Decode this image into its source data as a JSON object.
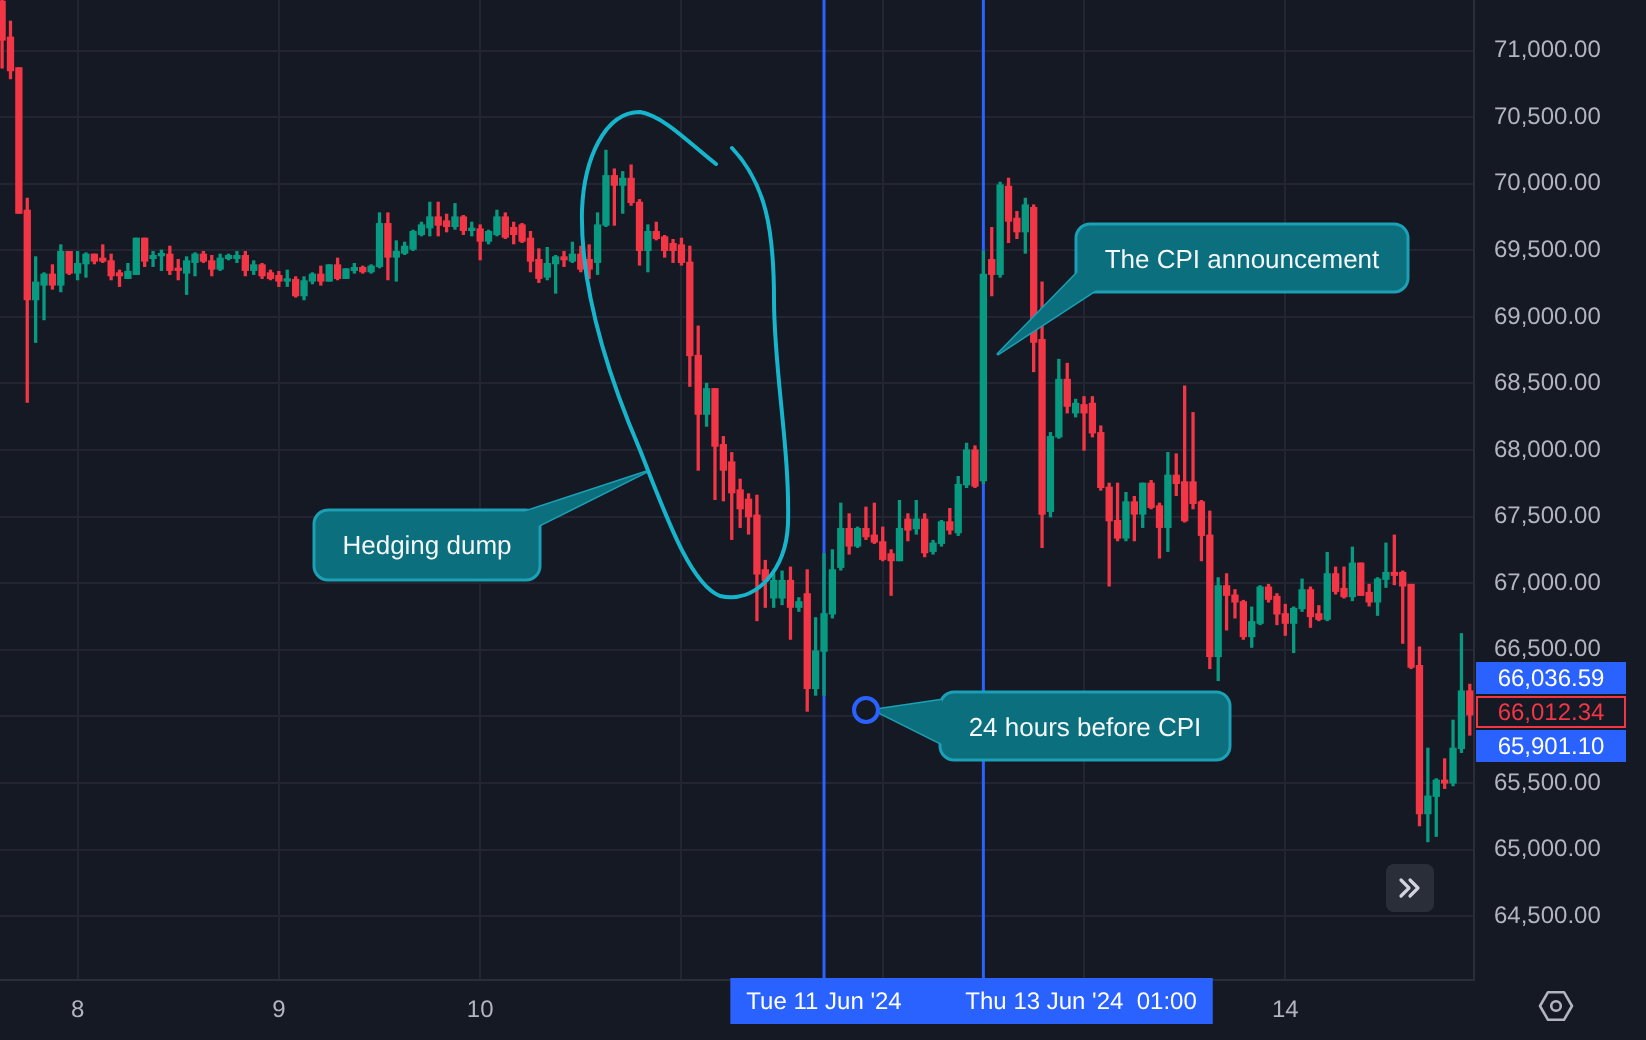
{
  "chart_data": {
    "type": "candlestick",
    "x": [
      "2024-06-07T15:00",
      "2024-06-07T16:00",
      "2024-06-07T17:00",
      "2024-06-07T18:00",
      "2024-06-07T19:00",
      "2024-06-07T20:00",
      "2024-06-07T21:00",
      "2024-06-07T22:00",
      "2024-06-07T23:00",
      "2024-06-08T00:00",
      "2024-06-08T01:00",
      "2024-06-08T02:00",
      "2024-06-08T03:00",
      "2024-06-08T04:00",
      "2024-06-08T05:00",
      "2024-06-08T06:00",
      "2024-06-08T07:00",
      "2024-06-08T08:00",
      "2024-06-08T09:00",
      "2024-06-08T10:00",
      "2024-06-08T11:00",
      "2024-06-08T12:00",
      "2024-06-08T13:00",
      "2024-06-08T14:00",
      "2024-06-08T15:00",
      "2024-06-08T16:00",
      "2024-06-08T17:00",
      "2024-06-08T18:00",
      "2024-06-08T19:00",
      "2024-06-08T20:00",
      "2024-06-08T21:00",
      "2024-06-08T22:00",
      "2024-06-08T23:00",
      "2024-06-09T00:00",
      "2024-06-09T01:00",
      "2024-06-09T02:00",
      "2024-06-09T03:00",
      "2024-06-09T04:00",
      "2024-06-09T05:00",
      "2024-06-09T06:00",
      "2024-06-09T07:00",
      "2024-06-09T08:00",
      "2024-06-09T09:00",
      "2024-06-09T10:00",
      "2024-06-09T11:00",
      "2024-06-09T12:00",
      "2024-06-09T13:00",
      "2024-06-09T14:00",
      "2024-06-09T15:00",
      "2024-06-09T16:00",
      "2024-06-09T17:00",
      "2024-06-09T18:00",
      "2024-06-09T19:00",
      "2024-06-09T20:00",
      "2024-06-09T21:00",
      "2024-06-09T22:00",
      "2024-06-09T23:00",
      "2024-06-10T00:00",
      "2024-06-10T01:00",
      "2024-06-10T02:00",
      "2024-06-10T03:00",
      "2024-06-10T04:00",
      "2024-06-10T05:00",
      "2024-06-10T06:00",
      "2024-06-10T07:00",
      "2024-06-10T08:00",
      "2024-06-10T09:00",
      "2024-06-10T10:00",
      "2024-06-10T11:00",
      "2024-06-10T12:00",
      "2024-06-10T13:00",
      "2024-06-10T14:00",
      "2024-06-10T15:00",
      "2024-06-10T16:00",
      "2024-06-10T17:00",
      "2024-06-10T18:00",
      "2024-06-10T19:00",
      "2024-06-10T20:00",
      "2024-06-10T21:00",
      "2024-06-10T22:00",
      "2024-06-10T23:00",
      "2024-06-11T00:00",
      "2024-06-11T01:00",
      "2024-06-11T02:00",
      "2024-06-11T03:00",
      "2024-06-11T04:00",
      "2024-06-11T05:00",
      "2024-06-11T06:00",
      "2024-06-11T07:00",
      "2024-06-11T08:00",
      "2024-06-11T09:00",
      "2024-06-11T10:00",
      "2024-06-11T11:00",
      "2024-06-11T12:00",
      "2024-06-11T13:00",
      "2024-06-11T14:00",
      "2024-06-11T15:00",
      "2024-06-11T16:00",
      "2024-06-11T17:00",
      "2024-06-11T18:00",
      "2024-06-11T19:00",
      "2024-06-11T20:00",
      "2024-06-11T21:00",
      "2024-06-11T22:00",
      "2024-06-11T23:00",
      "2024-06-12T00:00",
      "2024-06-12T01:00",
      "2024-06-12T02:00",
      "2024-06-12T03:00",
      "2024-06-12T04:00",
      "2024-06-12T05:00",
      "2024-06-12T06:00",
      "2024-06-12T07:00",
      "2024-06-12T08:00",
      "2024-06-12T09:00",
      "2024-06-12T10:00",
      "2024-06-12T11:00",
      "2024-06-12T12:00",
      "2024-06-12T13:00",
      "2024-06-12T14:00",
      "2024-06-12T15:00",
      "2024-06-12T16:00",
      "2024-06-12T17:00",
      "2024-06-12T18:00",
      "2024-06-12T19:00",
      "2024-06-12T20:00",
      "2024-06-12T21:00",
      "2024-06-12T22:00",
      "2024-06-12T23:00",
      "2024-06-13T00:00",
      "2024-06-13T01:00",
      "2024-06-13T02:00",
      "2024-06-13T03:00",
      "2024-06-13T04:00",
      "2024-06-13T05:00",
      "2024-06-13T06:00",
      "2024-06-13T07:00",
      "2024-06-13T08:00",
      "2024-06-13T09:00",
      "2024-06-13T10:00",
      "2024-06-13T11:00",
      "2024-06-13T12:00",
      "2024-06-13T13:00",
      "2024-06-13T14:00",
      "2024-06-13T15:00",
      "2024-06-13T16:00",
      "2024-06-13T17:00",
      "2024-06-13T18:00",
      "2024-06-13T19:00",
      "2024-06-13T20:00",
      "2024-06-13T21:00",
      "2024-06-13T22:00",
      "2024-06-13T23:00",
      "2024-06-14T00:00",
      "2024-06-14T01:00",
      "2024-06-14T02:00",
      "2024-06-14T03:00",
      "2024-06-14T04:00",
      "2024-06-14T05:00",
      "2024-06-14T06:00",
      "2024-06-14T07:00",
      "2024-06-14T08:00",
      "2024-06-14T09:00",
      "2024-06-14T10:00",
      "2024-06-14T11:00",
      "2024-06-14T12:00",
      "2024-06-14T13:00",
      "2024-06-14T14:00",
      "2024-06-14T15:00",
      "2024-06-14T16:00",
      "2024-06-14T17:00",
      "2024-06-14T18:00",
      "2024-06-14T19:00",
      "2024-06-14T20:00",
      "2024-06-14T21:00",
      "2024-06-14T22:00"
    ],
    "ohlc": [
      [
        71370,
        71380,
        70870,
        71080
      ],
      [
        71100,
        71220,
        70790,
        70850
      ],
      [
        70870,
        70870,
        69780,
        69780
      ],
      [
        69800,
        69890,
        68360,
        69130
      ],
      [
        69130,
        69450,
        68810,
        69260
      ],
      [
        69240,
        69330,
        68980,
        69320
      ],
      [
        69320,
        69390,
        69210,
        69240
      ],
      [
        69240,
        69540,
        69190,
        69490
      ],
      [
        69490,
        69490,
        69320,
        69330
      ],
      [
        69330,
        69490,
        69280,
        69400
      ],
      [
        69400,
        69480,
        69300,
        69470
      ],
      [
        69470,
        69470,
        69400,
        69420
      ],
      [
        69440,
        69540,
        69410,
        69420
      ],
      [
        69420,
        69470,
        69280,
        69310
      ],
      [
        69330,
        69350,
        69230,
        69310
      ],
      [
        69290,
        69400,
        69290,
        69340
      ],
      [
        69320,
        69590,
        69320,
        69590
      ],
      [
        69590,
        69590,
        69380,
        69420
      ],
      [
        69440,
        69490,
        69380,
        69460
      ],
      [
        69460,
        69500,
        69350,
        69470
      ],
      [
        69470,
        69530,
        69320,
        69350
      ],
      [
        69360,
        69430,
        69280,
        69350
      ],
      [
        69330,
        69450,
        69170,
        69420
      ],
      [
        69410,
        69480,
        69310,
        69470
      ],
      [
        69470,
        69490,
        69410,
        69420
      ],
      [
        69420,
        69460,
        69310,
        69360
      ],
      [
        69360,
        69470,
        69350,
        69440
      ],
      [
        69440,
        69470,
        69430,
        69460
      ],
      [
        69440,
        69490,
        69410,
        69460
      ],
      [
        69460,
        69490,
        69310,
        69350
      ],
      [
        69350,
        69420,
        69320,
        69390
      ],
      [
        69390,
        69400,
        69290,
        69310
      ],
      [
        69330,
        69350,
        69280,
        69290
      ],
      [
        69310,
        69340,
        69230,
        69270
      ],
      [
        69270,
        69350,
        69230,
        69280
      ],
      [
        69280,
        69300,
        69150,
        69160
      ],
      [
        69160,
        69300,
        69130,
        69270
      ],
      [
        69270,
        69330,
        69250,
        69320
      ],
      [
        69320,
        69380,
        69240,
        69270
      ],
      [
        69270,
        69390,
        69270,
        69390
      ],
      [
        69390,
        69440,
        69280,
        69290
      ],
      [
        69290,
        69360,
        69290,
        69360
      ],
      [
        69350,
        69400,
        69330,
        69370
      ],
      [
        69370,
        69380,
        69330,
        69340
      ],
      [
        69340,
        69390,
        69330,
        69380
      ],
      [
        69380,
        69780,
        69370,
        69700
      ],
      [
        69700,
        69780,
        69280,
        69450
      ],
      [
        69450,
        69570,
        69270,
        69490
      ],
      [
        69480,
        69560,
        69470,
        69530
      ],
      [
        69510,
        69650,
        69500,
        69640
      ],
      [
        69620,
        69710,
        69610,
        69690
      ],
      [
        69670,
        69860,
        69610,
        69750
      ],
      [
        69750,
        69860,
        69610,
        69690
      ],
      [
        69720,
        69770,
        69640,
        69680
      ],
      [
        69680,
        69850,
        69660,
        69750
      ],
      [
        69750,
        69760,
        69620,
        69650
      ],
      [
        69650,
        69710,
        69610,
        69660
      ],
      [
        69660,
        69690,
        69430,
        69570
      ],
      [
        69570,
        69650,
        69550,
        69640
      ],
      [
        69620,
        69800,
        69610,
        69750
      ],
      [
        69750,
        69780,
        69590,
        69600
      ],
      [
        69670,
        69710,
        69550,
        69620
      ],
      [
        69690,
        69700,
        69560,
        69570
      ],
      [
        69590,
        69640,
        69340,
        69420
      ],
      [
        69430,
        69510,
        69260,
        69290
      ],
      [
        69300,
        69520,
        69280,
        69400
      ],
      [
        69400,
        69460,
        69180,
        69450
      ],
      [
        69450,
        69490,
        69380,
        69430
      ],
      [
        69420,
        69560,
        69410,
        69470
      ],
      [
        69470,
        69530,
        69340,
        69360
      ],
      [
        69430,
        69540,
        69290,
        69360
      ],
      [
        69410,
        69780,
        69320,
        69690
      ],
      [
        69690,
        70250,
        69680,
        70060
      ],
      [
        70060,
        70110,
        69690,
        69990
      ],
      [
        69990,
        70090,
        69780,
        70040
      ],
      [
        70040,
        70140,
        69840,
        69860
      ],
      [
        69860,
        69880,
        69390,
        69500
      ],
      [
        69500,
        69690,
        69340,
        69640
      ],
      [
        69640,
        69710,
        69580,
        69590
      ],
      [
        69600,
        69610,
        69450,
        69500
      ],
      [
        69550,
        69580,
        69410,
        69500
      ],
      [
        69540,
        69590,
        69390,
        69410
      ],
      [
        69410,
        69530,
        68480,
        68710
      ],
      [
        68710,
        68930,
        67850,
        68270
      ],
      [
        68270,
        68500,
        68180,
        68460
      ],
      [
        68460,
        68460,
        67630,
        68030
      ],
      [
        68040,
        68100,
        67620,
        67850
      ],
      [
        67910,
        67980,
        67330,
        67680
      ],
      [
        67700,
        67780,
        67420,
        67560
      ],
      [
        67630,
        67670,
        67370,
        67500
      ],
      [
        67510,
        67660,
        66720,
        67070
      ],
      [
        67100,
        67170,
        66820,
        67020
      ],
      [
        66890,
        67070,
        66820,
        67020
      ],
      [
        66890,
        67090,
        66840,
        67020
      ],
      [
        67020,
        67120,
        66580,
        66820
      ],
      [
        66820,
        66890,
        66790,
        66860
      ],
      [
        66920,
        67100,
        66040,
        66210
      ],
      [
        66210,
        66740,
        66160,
        66490
      ],
      [
        66490,
        67220,
        66160,
        66770
      ],
      [
        66770,
        67250,
        66740,
        67100
      ],
      [
        67120,
        67600,
        67100,
        67410
      ],
      [
        67410,
        67520,
        67220,
        67280
      ],
      [
        67280,
        67420,
        67270,
        67410
      ],
      [
        67410,
        67570,
        67330,
        67350
      ],
      [
        67360,
        67600,
        67300,
        67310
      ],
      [
        67310,
        67420,
        67170,
        67180
      ],
      [
        67220,
        67250,
        66910,
        67170
      ],
      [
        67170,
        67620,
        67170,
        67410
      ],
      [
        67480,
        67520,
        67320,
        67400
      ],
      [
        67410,
        67620,
        67370,
        67480
      ],
      [
        67480,
        67520,
        67200,
        67230
      ],
      [
        67240,
        67320,
        67220,
        67300
      ],
      [
        67300,
        67470,
        67280,
        67460
      ],
      [
        67460,
        67560,
        67370,
        67400
      ],
      [
        67380,
        67800,
        67360,
        67740
      ],
      [
        67740,
        68050,
        67720,
        68000
      ],
      [
        68000,
        68030,
        67720,
        67730
      ],
      [
        67770,
        69490,
        67750,
        69320
      ],
      [
        69430,
        69670,
        69160,
        69320
      ],
      [
        69320,
        70010,
        69300,
        69990
      ],
      [
        69980,
        70040,
        69560,
        69720
      ],
      [
        69740,
        69790,
        69590,
        69640
      ],
      [
        69640,
        69890,
        69480,
        69840
      ],
      [
        69820,
        69840,
        68590,
        68810
      ],
      [
        68830,
        69260,
        67270,
        67520
      ],
      [
        67540,
        68130,
        67500,
        68100
      ],
      [
        68100,
        68680,
        68090,
        68530
      ],
      [
        68530,
        68650,
        68280,
        68330
      ],
      [
        68280,
        68380,
        68250,
        68350
      ],
      [
        68340,
        68400,
        68000,
        68280
      ],
      [
        68350,
        68400,
        68100,
        68130
      ],
      [
        68130,
        68180,
        67700,
        67720
      ],
      [
        67720,
        67750,
        66980,
        67470
      ],
      [
        67470,
        67750,
        67320,
        67340
      ],
      [
        67340,
        67680,
        67320,
        67610
      ],
      [
        67610,
        67650,
        67320,
        67520
      ],
      [
        67520,
        67750,
        67420,
        67750
      ],
      [
        67750,
        67770,
        67560,
        67570
      ],
      [
        67580,
        67600,
        67190,
        67420
      ],
      [
        67420,
        67980,
        67240,
        67810
      ],
      [
        67810,
        67970,
        67660,
        67750
      ],
      [
        67760,
        68480,
        67460,
        67470
      ],
      [
        67760,
        68280,
        67560,
        67600
      ],
      [
        67610,
        67620,
        67170,
        67360
      ],
      [
        67360,
        67540,
        66360,
        66450
      ],
      [
        66450,
        67040,
        66270,
        66980
      ],
      [
        66980,
        67070,
        66650,
        66910
      ],
      [
        66910,
        66950,
        66740,
        66860
      ],
      [
        66860,
        66870,
        66580,
        66600
      ],
      [
        66600,
        66820,
        66520,
        66710
      ],
      [
        66700,
        66980,
        66690,
        66970
      ],
      [
        66970,
        66990,
        66860,
        66880
      ],
      [
        66900,
        66920,
        66690,
        66770
      ],
      [
        66770,
        66840,
        66610,
        66700
      ],
      [
        66700,
        66820,
        66480,
        66810
      ],
      [
        66810,
        67030,
        66790,
        66950
      ],
      [
        66950,
        66970,
        66670,
        66750
      ],
      [
        66770,
        66830,
        66720,
        66730
      ],
      [
        66730,
        67230,
        66720,
        67070
      ],
      [
        67070,
        67120,
        66920,
        66940
      ],
      [
        66960,
        67120,
        66890,
        66900
      ],
      [
        66900,
        67270,
        66870,
        67150
      ],
      [
        67150,
        67150,
        66910,
        66910
      ],
      [
        66930,
        66990,
        66830,
        66860
      ],
      [
        66860,
        67040,
        66760,
        67030
      ],
      [
        67030,
        67300,
        66970,
        67080
      ],
      [
        67080,
        67360,
        66990,
        67060
      ],
      [
        67080,
        67090,
        66550,
        66980
      ],
      [
        66990,
        66990,
        66360,
        66370
      ],
      [
        66380,
        66520,
        65180,
        65270
      ],
      [
        65270,
        65760,
        65060,
        65400
      ],
      [
        65400,
        65530,
        65100,
        65520
      ],
      [
        65520,
        65680,
        65460,
        65500
      ],
      [
        65500,
        65970,
        65480,
        65760
      ],
      [
        65760,
        66620,
        65730,
        66190
      ],
      [
        66190,
        66240,
        65860,
        66012.34
      ]
    ],
    "colors": [
      "#f23645",
      "#f23645",
      "#f23645",
      "#f23645",
      "#089981",
      "#089981",
      "#f23645",
      "#089981",
      "#f23645",
      "#089981",
      "#089981",
      "#f23645",
      "#f23645",
      "#f23645",
      "#f23645",
      "#089981",
      "#089981",
      "#f23645",
      "#089981",
      "#089981",
      "#f23645",
      "#f23645",
      "#089981",
      "#089981",
      "#f23645",
      "#f23645",
      "#089981",
      "#089981",
      "#089981",
      "#f23645",
      "#089981",
      "#f23645",
      "#f23645",
      "#f23645",
      "#089981",
      "#f23645",
      "#089981",
      "#089981",
      "#f23645",
      "#089981",
      "#f23645",
      "#089981",
      "#089981",
      "#f23645",
      "#089981",
      "#089981",
      "#f23645",
      "#089981",
      "#089981",
      "#089981",
      "#089981",
      "#089981",
      "#f23645",
      "#f23645",
      "#089981",
      "#f23645",
      "#089981",
      "#f23645",
      "#089981",
      "#089981",
      "#f23645",
      "#f23645",
      "#f23645",
      "#f23645",
      "#f23645",
      "#089981",
      "#089981",
      "#f23645",
      "#089981",
      "#f23645",
      "#f23645",
      "#089981",
      "#089981",
      "#f23645",
      "#089981",
      "#f23645",
      "#f23645",
      "#089981",
      "#f23645",
      "#f23645",
      "#f23645",
      "#f23645",
      "#f23645",
      "#f23645",
      "#089981",
      "#f23645",
      "#f23645",
      "#f23645",
      "#f23645",
      "#f23645",
      "#f23645",
      "#f23645",
      "#089981",
      "#089981",
      "#f23645",
      "#089981",
      "#f23645",
      "#089981",
      "#089981",
      "#089981",
      "#089981",
      "#f23645",
      "#089981",
      "#f23645",
      "#f23645",
      "#f23645",
      "#f23645",
      "#089981",
      "#f23645",
      "#089981",
      "#f23645",
      "#089981",
      "#089981",
      "#f23645",
      "#089981",
      "#089981",
      "#f23645",
      "#089981",
      "#f23645",
      "#089981",
      "#f23645",
      "#f23645",
      "#089981",
      "#f23645",
      "#f23645",
      "#089981",
      "#089981",
      "#f23645",
      "#089981",
      "#f23645",
      "#f23645",
      "#f23645",
      "#f23645",
      "#f23645",
      "#089981",
      "#f23645",
      "#089981",
      "#f23645",
      "#f23645",
      "#089981",
      "#f23645",
      "#f23645",
      "#f23645",
      "#f23645",
      "#f23645",
      "#089981",
      "#f23645",
      "#f23645",
      "#f23645",
      "#089981",
      "#089981",
      "#f23645",
      "#f23645",
      "#f23645",
      "#089981",
      "#089981",
      "#f23645",
      "#f23645",
      "#089981",
      "#f23645",
      "#f23645",
      "#089981",
      "#f23645",
      "#f23645",
      "#089981",
      "#089981",
      "#f23645",
      "#f23645",
      "#f23645",
      "#f23645",
      "#089981",
      "#089981",
      "#f23645",
      "#089981",
      "#089981",
      "#f23645"
    ],
    "xlim": [
      "2024-06-07T14:45",
      "2024-06-14T22:30"
    ],
    "xticks": [
      {
        "value": "2024-06-08",
        "label": "8"
      },
      {
        "value": "2024-06-09",
        "label": "9"
      },
      {
        "value": "2024-06-10",
        "label": "10"
      },
      {
        "value": "2024-06-11",
        "label": null
      },
      {
        "value": "2024-06-12",
        "label": null
      },
      {
        "value": "2024-06-13",
        "label": null
      },
      {
        "value": "2024-06-14",
        "label": "14"
      }
    ],
    "ylim": [
      64020,
      71380
    ],
    "yticks": [
      {
        "value": 64500,
        "label": "64,500.00"
      },
      {
        "value": 65000,
        "label": "65,000.00"
      },
      {
        "value": 65500,
        "label": "65,500.00"
      },
      {
        "value": 66000,
        "label": null
      },
      {
        "value": 66500,
        "label": "66,500.00"
      },
      {
        "value": 67000,
        "label": "67,000.00"
      },
      {
        "value": 67500,
        "label": "67,500.00"
      },
      {
        "value": 68000,
        "label": "68,000.00"
      },
      {
        "value": 68500,
        "label": "68,500.00"
      },
      {
        "value": 69000,
        "label": "69,000.00"
      },
      {
        "value": 69500,
        "label": "69,500.00"
      },
      {
        "value": 70000,
        "label": "70,000.00"
      },
      {
        "value": 70500,
        "label": "70,500.00"
      },
      {
        "value": 71000,
        "label": "71,000.00"
      }
    ],
    "grid": true,
    "ref_lines": [
      {
        "axis": "x",
        "value": "2024-06-11T17:00",
        "label": "Tue 11 Jun '24",
        "color": "#2962ff"
      },
      {
        "axis": "x",
        "value": "2024-06-12T12:00",
        "label": "Thu 13 Jun '24  01:00",
        "color": "#2962ff"
      }
    ],
    "annotations": [
      "Hedging dump",
      "The CPI announcement",
      "24 hours before CPI",
      "66,036.59",
      "66,012.34",
      "65,901.10"
    ]
  }
}
